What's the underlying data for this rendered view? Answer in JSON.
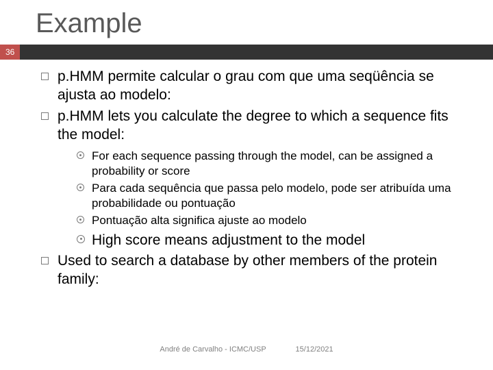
{
  "title": "Example",
  "pageNumber": "36",
  "bullets": [
    {
      "text": "p.HMM permite calcular o grau com que uma seqüência se ajusta ao modelo:"
    },
    {
      "text": "p.HMM lets you calculate the degree to which a sequence fits the model:",
      "sub": [
        "For each sequence passing through the model, can be assigned a probability or score",
        "Para cada sequência que passa pelo modelo, pode ser atribuída uma probabilidade ou pontuação",
        "Pontuação alta significa ajuste ao modelo"
      ],
      "sub2": [
        "High score means adjustment to the model"
      ]
    },
    {
      "text": "Used to search a database by other members of the protein family:"
    }
  ],
  "footer": {
    "author": "André de Carvalho - ICMC/USP",
    "date": "15/12/2021"
  }
}
